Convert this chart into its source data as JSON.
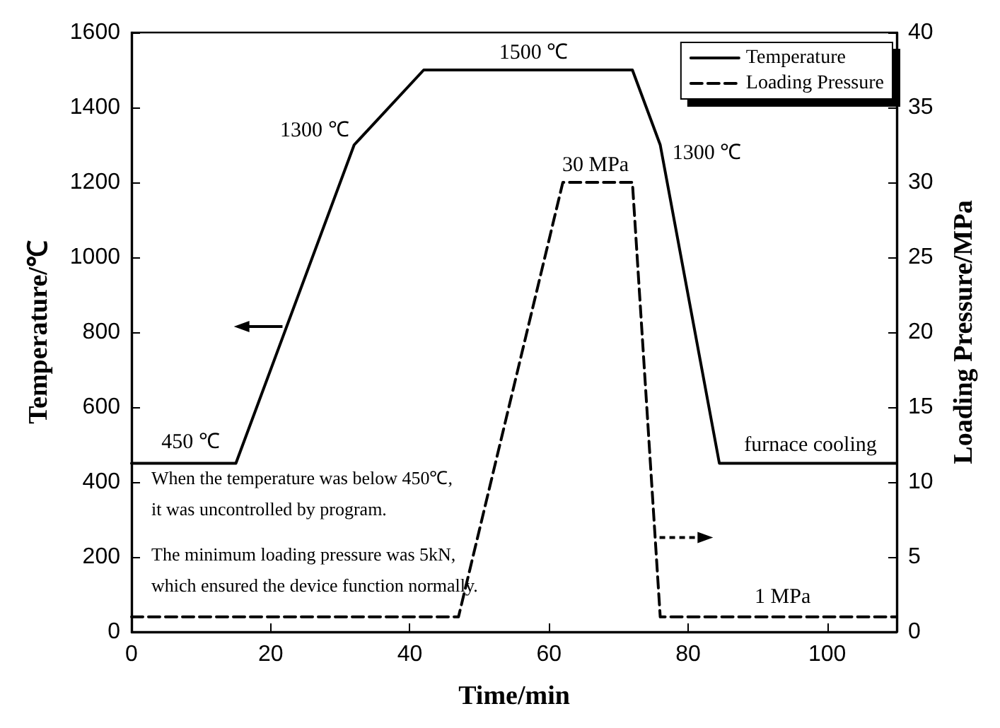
{
  "chart_data": {
    "type": "line",
    "xlabel": "Time/min",
    "ylabel": "Temperature/℃",
    "y2label": "Loading Pressure/MPa",
    "xlim": [
      0,
      110
    ],
    "xticks": [
      0,
      20,
      40,
      60,
      80,
      100
    ],
    "ylim": [
      0,
      1600
    ],
    "yticks": [
      0,
      200,
      400,
      600,
      800,
      1000,
      1200,
      1400,
      1600
    ],
    "y2lim": [
      0,
      40
    ],
    "y2ticks": [
      0,
      5,
      10,
      15,
      20,
      25,
      30,
      35,
      40
    ],
    "series": [
      {
        "name": "Temperature",
        "color": "#000000",
        "line_style": "solid",
        "x": [
          0,
          15,
          32,
          42,
          72,
          76,
          84.5,
          110
        ],
        "values": [
          450,
          450,
          1300,
          1500,
          1500,
          1300,
          450,
          450
        ]
      },
      {
        "name": "Loading Pressure",
        "color": "#000000",
        "line_style": "dashed",
        "axis": "y2",
        "x": [
          0,
          47,
          62,
          72,
          76,
          110
        ],
        "values": [
          1,
          1,
          30,
          30,
          1,
          1
        ]
      }
    ],
    "annotations": [
      {
        "text": "450 ℃",
        "x": 15,
        "y": 450
      },
      {
        "text": "1300 ℃",
        "x": 32,
        "y": 1300
      },
      {
        "text": "1500 ℃",
        "x": 57.8,
        "y": 1500
      },
      {
        "text": "1300 ℃",
        "x": 76,
        "y": 1300
      },
      {
        "text": "30 MPa",
        "x": 66.7,
        "y": 1200
      },
      {
        "text": "1 MPa",
        "x": 93.6,
        "y": 40
      },
      {
        "text": "furnace cooling",
        "x": 97.6,
        "y": 450
      },
      "When the temperature was below 450℃,\nit was uncontrolled by program.",
      "The minimum loading pressure was 5kN,\nwhich ensured the device function normally."
    ],
    "grid": false,
    "legend": "top right",
    "marker": "none"
  }
}
